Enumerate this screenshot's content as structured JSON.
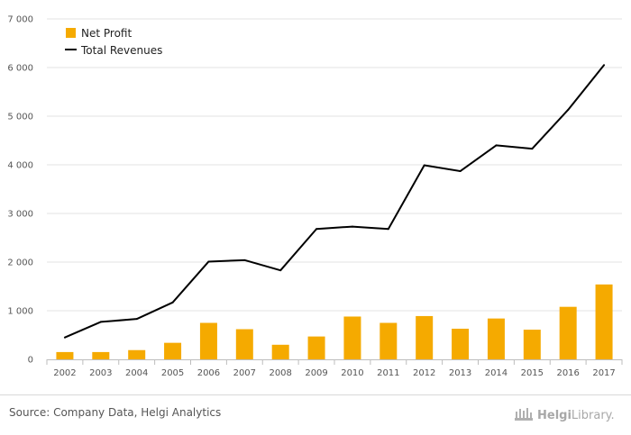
{
  "chart_data": {
    "type": "bar",
    "categories": [
      "2002",
      "2003",
      "2004",
      "2005",
      "2006",
      "2007",
      "2008",
      "2009",
      "2010",
      "2011",
      "2012",
      "2013",
      "2014",
      "2015",
      "2016",
      "2017"
    ],
    "series": [
      {
        "name": "Net Profit",
        "type": "bar",
        "color": "#f5aa00",
        "values": [
          150,
          150,
          190,
          340,
          750,
          620,
          300,
          470,
          880,
          750,
          890,
          630,
          840,
          610,
          1080,
          1540
        ]
      },
      {
        "name": "Total Revenues",
        "type": "line",
        "color": "#000000",
        "values": [
          450,
          770,
          830,
          1170,
          2010,
          2040,
          1830,
          2680,
          2730,
          2680,
          3990,
          3870,
          4400,
          4330,
          5130,
          6050
        ]
      }
    ],
    "yticks": [
      "0",
      "1 000",
      "2 000",
      "3 000",
      "4 000",
      "5 000",
      "6 000",
      "7 000"
    ],
    "ylim": [
      0,
      7000
    ],
    "grid": true,
    "legend_position": "top-left"
  },
  "footer": {
    "source": "Source: Company Data, Helgi Analytics",
    "logo_bold": "Helgi",
    "logo_rest": "Library."
  },
  "icons": {
    "logo": "library-building-icon"
  }
}
